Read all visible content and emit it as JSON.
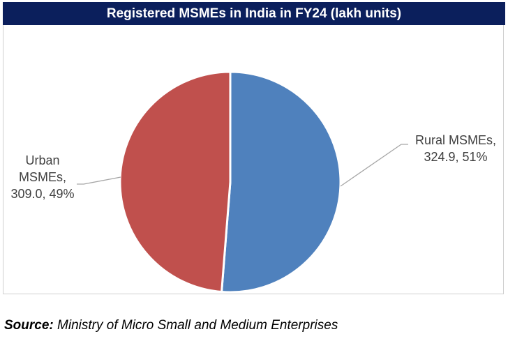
{
  "chart_data": {
    "type": "pie",
    "title": "Registered MSMEs in India in FY24 (lakh units)",
    "slices": [
      {
        "label_lines": [
          "Rural MSMEs,",
          "324.9, 51%"
        ],
        "value": 324.9,
        "percent": 51,
        "color": "#4f81bd"
      },
      {
        "label_lines": [
          "Urban",
          "MSMEs,",
          "309.0, 49%"
        ],
        "value": 309.0,
        "percent": 49,
        "color": "#c0504d"
      }
    ],
    "start_angle_deg": 0,
    "direction": "clockwise",
    "slice_border_color": "#ffffff",
    "leader_line_color": "#a6a6a6"
  },
  "source": {
    "label": "Source:",
    "text": "Ministry of Micro Small and Medium Enterprises"
  }
}
